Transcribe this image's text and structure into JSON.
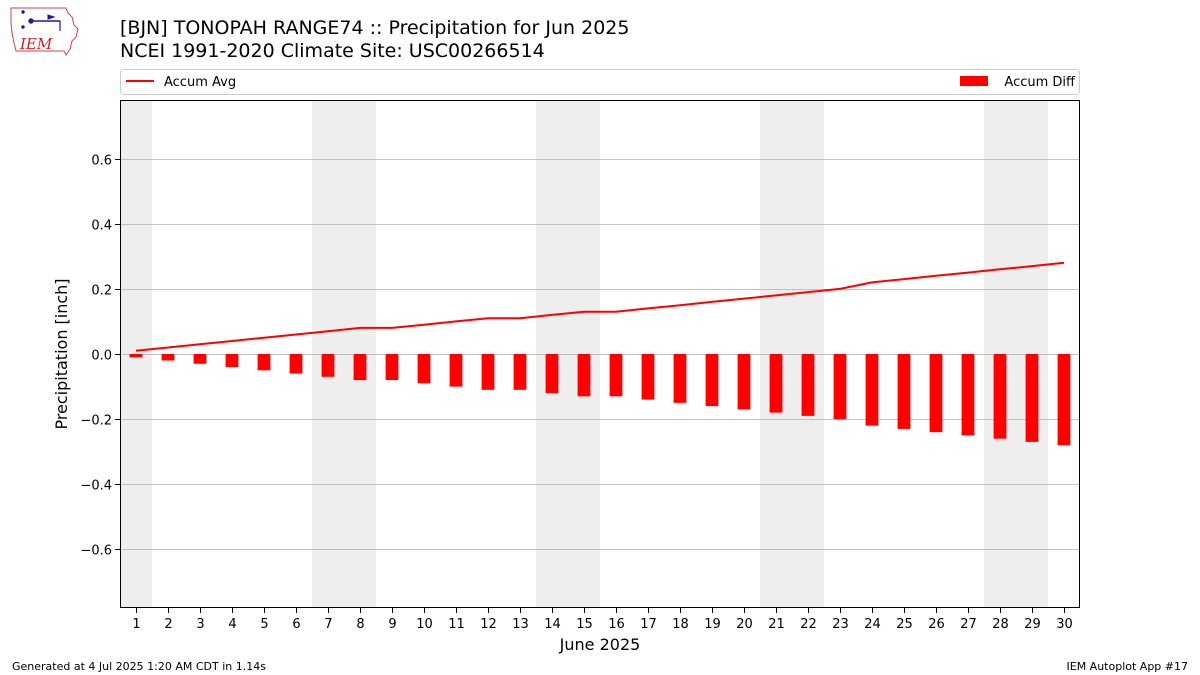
{
  "header": {
    "title": "[BJN] TONOPAH RANGE74 :: Precipitation for Jun 2025",
    "subtitle": "NCEI 1991-2020 Climate Site: USC00266514"
  },
  "logo": {
    "text": "IEM"
  },
  "footer": {
    "left": "Generated at 4 Jul 2025 1:20 AM CDT in 1.14s",
    "right": "IEM Autoplot App #17"
  },
  "colors": {
    "line": "#ff0000",
    "bar": "#ff0000",
    "weekend_band": "#eeeeee",
    "grid": "#b0b0b0"
  },
  "chart_data": {
    "type": "bar",
    "xlabel": "June 2025",
    "ylabel": "Precipitation [inch]",
    "ylim": [
      -0.78,
      0.78
    ],
    "yticks": [
      -0.6,
      -0.4,
      -0.2,
      0.0,
      0.2,
      0.4,
      0.6
    ],
    "ytick_labels": [
      "−0.6",
      "−0.4",
      "−0.2",
      "0.0",
      "0.2",
      "0.4",
      "0.6"
    ],
    "x": [
      1,
      2,
      3,
      4,
      5,
      6,
      7,
      8,
      9,
      10,
      11,
      12,
      13,
      14,
      15,
      16,
      17,
      18,
      19,
      20,
      21,
      22,
      23,
      24,
      25,
      26,
      27,
      28,
      29,
      30
    ],
    "xlim": [
      0.5,
      30.5
    ],
    "grid": "horizontal",
    "legend_placement": "top, above plot",
    "weekend_days": [
      1,
      7,
      8,
      14,
      15,
      21,
      22,
      28,
      29
    ],
    "series": [
      {
        "name": "Accum Avg",
        "kind": "line",
        "values": [
          0.01,
          0.02,
          0.03,
          0.04,
          0.05,
          0.06,
          0.07,
          0.08,
          0.08,
          0.09,
          0.1,
          0.11,
          0.11,
          0.12,
          0.13,
          0.13,
          0.14,
          0.15,
          0.16,
          0.17,
          0.18,
          0.19,
          0.2,
          0.22,
          0.23,
          0.24,
          0.25,
          0.26,
          0.27,
          0.28
        ]
      },
      {
        "name": "Accum Diff",
        "kind": "bar",
        "values": [
          -0.01,
          -0.02,
          -0.03,
          -0.04,
          -0.05,
          -0.06,
          -0.07,
          -0.08,
          -0.08,
          -0.09,
          -0.1,
          -0.11,
          -0.11,
          -0.12,
          -0.13,
          -0.13,
          -0.14,
          -0.15,
          -0.16,
          -0.17,
          -0.18,
          -0.19,
          -0.2,
          -0.22,
          -0.23,
          -0.24,
          -0.25,
          -0.26,
          -0.27,
          -0.28
        ]
      }
    ]
  }
}
